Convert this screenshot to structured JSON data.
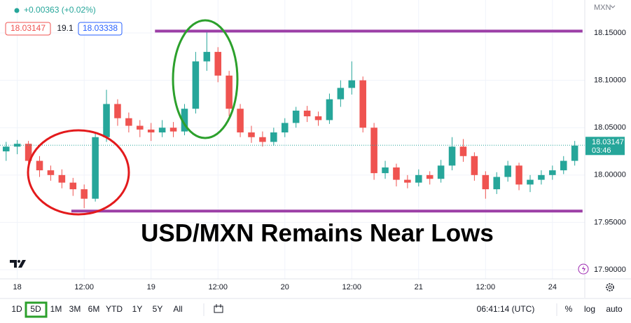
{
  "chart_data": {
    "type": "candlestick",
    "currency": "MXN",
    "change": "+0.00363 (+0.02%)",
    "sell": 18.03147,
    "spread": 19.1,
    "buy": 18.03338,
    "last": 18.03147,
    "countdown": "03:46",
    "annotation": "USD/MXN Remains Near Lows",
    "up_color": "#26a69a",
    "down_color": "#ef5350",
    "level_color": "#9c3fa6",
    "grid": true,
    "x": [
      -2,
      0,
      2,
      4,
      6,
      8,
      10,
      12,
      14,
      16,
      18,
      20,
      22,
      24,
      26,
      28,
      30,
      32,
      34,
      36,
      38,
      40,
      42,
      44,
      46,
      48,
      50,
      52,
      54,
      56,
      58,
      60,
      62,
      64,
      66,
      68,
      70,
      72,
      74,
      76,
      78,
      80,
      82,
      84,
      86,
      88,
      90,
      92,
      94,
      96,
      98,
      100
    ],
    "open": [
      18.025,
      18.03,
      18.033,
      18.015,
      18.005,
      18.0,
      17.992,
      17.985,
      17.975,
      18.04,
      18.075,
      18.06,
      18.052,
      18.048,
      18.045,
      18.05,
      18.046,
      18.07,
      18.12,
      18.13,
      18.105,
      18.07,
      18.045,
      18.04,
      18.035,
      18.045,
      18.055,
      18.068,
      18.062,
      18.058,
      18.08,
      18.092,
      18.1,
      18.05,
      18.002,
      18.008,
      17.995,
      17.992,
      18.0,
      17.996,
      18.01,
      18.03,
      18.02,
      18.0,
      17.985,
      17.998,
      18.01,
      17.99,
      17.995,
      18.0,
      18.005,
      18.015
    ],
    "high": [
      18.035,
      18.037,
      18.036,
      18.02,
      18.01,
      18.006,
      17.997,
      17.99,
      18.045,
      18.09,
      18.08,
      18.066,
      18.058,
      18.055,
      18.058,
      18.056,
      18.075,
      18.13,
      18.152,
      18.135,
      18.11,
      18.075,
      18.052,
      18.046,
      18.05,
      18.06,
      18.072,
      18.073,
      18.067,
      18.086,
      18.1,
      18.12,
      18.104,
      18.055,
      18.015,
      18.012,
      18.0,
      18.006,
      18.004,
      18.016,
      18.04,
      18.038,
      18.024,
      18.004,
      18.003,
      18.015,
      18.013,
      18.0,
      18.005,
      18.01,
      18.02,
      18.036
    ],
    "low": [
      18.015,
      18.022,
      18.01,
      17.998,
      17.994,
      17.986,
      17.978,
      17.965,
      17.972,
      18.035,
      18.052,
      18.045,
      18.04,
      18.036,
      18.04,
      18.04,
      18.042,
      18.065,
      18.11,
      18.098,
      18.062,
      18.04,
      18.034,
      18.03,
      18.031,
      18.04,
      18.05,
      18.056,
      18.052,
      18.054,
      18.072,
      18.085,
      18.045,
      17.995,
      17.996,
      17.988,
      17.986,
      17.988,
      17.99,
      17.992,
      18.005,
      18.014,
      17.994,
      17.975,
      17.98,
      17.993,
      17.984,
      17.982,
      17.99,
      17.995,
      18.001,
      18.01
    ],
    "close": [
      18.03,
      18.033,
      18.015,
      18.005,
      18.0,
      17.992,
      17.985,
      17.975,
      18.04,
      18.075,
      18.06,
      18.052,
      18.048,
      18.045,
      18.05,
      18.046,
      18.07,
      18.12,
      18.13,
      18.105,
      18.07,
      18.045,
      18.04,
      18.035,
      18.045,
      18.055,
      18.068,
      18.062,
      18.058,
      18.08,
      18.092,
      18.1,
      18.05,
      18.002,
      18.008,
      17.995,
      17.992,
      18.0,
      17.996,
      18.01,
      18.03,
      18.02,
      18.0,
      17.985,
      17.998,
      18.01,
      17.99,
      17.995,
      18.0,
      18.005,
      18.015,
      18.031
    ],
    "levels": [
      {
        "value": 18.152,
        "xrange": [
          24.7,
          101.4
        ]
      },
      {
        "value": 17.962,
        "xrange": [
          9.7,
          101.4
        ]
      }
    ],
    "xlim": [
      -3.1,
      101.8
    ],
    "xticks": [
      {
        "value": 0,
        "label": "18"
      },
      {
        "value": 12,
        "label": "12:00"
      },
      {
        "value": 24,
        "label": "19"
      },
      {
        "value": 36,
        "label": "12:00"
      },
      {
        "value": 48,
        "label": "20"
      },
      {
        "value": 60,
        "label": "12:00"
      },
      {
        "value": 72,
        "label": "21"
      },
      {
        "value": 84,
        "label": "12:00"
      },
      {
        "value": 96,
        "label": "24"
      }
    ],
    "ylim": [
      17.8904,
      18.1848
    ],
    "yticks": [
      {
        "value": 17.9,
        "label": "17.90000"
      },
      {
        "value": 17.95,
        "label": "17.95000"
      },
      {
        "value": 18.0,
        "label": "18.00000"
      },
      {
        "value": 18.05,
        "label": "18.05000"
      },
      {
        "value": 18.1,
        "label": "18.10000"
      },
      {
        "value": 18.15,
        "label": "18.15000"
      }
    ]
  },
  "toolbar": {
    "ranges": [
      "1D",
      "5D",
      "1M",
      "3M",
      "6M",
      "YTD",
      "1Y",
      "5Y",
      "All"
    ],
    "selected": "5D",
    "clock": "06:41:14 (UTC)",
    "options": [
      "%",
      "log",
      "auto"
    ]
  }
}
